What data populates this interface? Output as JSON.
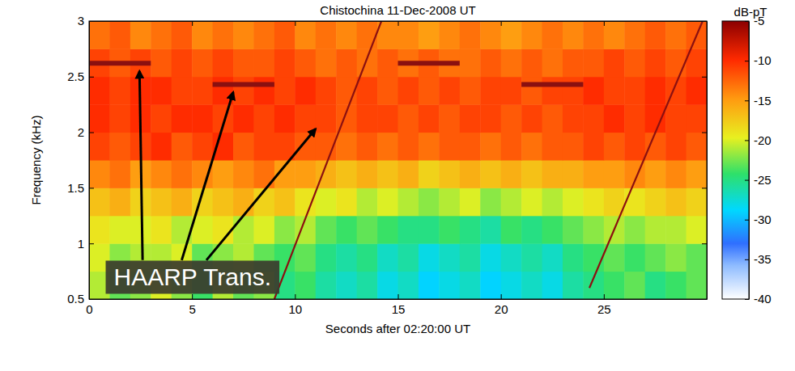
{
  "chart_data": {
    "type": "heatmap",
    "title": "Chistochina 11-Dec-2008 UT",
    "x_label": "Seconds after 02:20:00 UT",
    "y_label": "Frequency (kHz)",
    "xlim": [
      0,
      30
    ],
    "xticks": [
      0,
      5,
      10,
      15,
      20,
      25
    ],
    "ylim": [
      0.5,
      3
    ],
    "yticks": [
      0.5,
      1,
      1.5,
      2,
      2.5,
      3
    ],
    "x_bins": [
      0,
      1,
      2,
      3,
      4,
      5,
      6,
      7,
      8,
      9,
      10,
      11,
      12,
      13,
      14,
      15,
      16,
      17,
      18,
      19,
      20,
      21,
      22,
      23,
      24,
      25,
      26,
      27,
      28,
      29,
      30
    ],
    "y_bins": [
      0.5,
      0.75,
      1,
      1.25,
      1.5,
      1.75,
      2,
      2.25,
      2.5,
      2.75,
      3
    ],
    "cells": [
      [
        -21,
        -23,
        -22,
        -20,
        -22,
        -24,
        -21,
        -23,
        -22,
        -25,
        -24,
        -26,
        -27,
        -26,
        -28,
        -27,
        -29,
        -28,
        -27,
        -29,
        -28,
        -27,
        -28,
        -26,
        -25,
        -24,
        -23,
        -25,
        -24,
        -23
      ],
      [
        -20,
        -22,
        -21,
        -21,
        -20,
        -23,
        -22,
        -21,
        -23,
        -24,
        -23,
        -25,
        -26,
        -25,
        -27,
        -26,
        -28,
        -27,
        -26,
        -28,
        -27,
        -26,
        -27,
        -25,
        -24,
        -23,
        -24,
        -23,
        -22,
        -23
      ],
      [
        -19,
        -20,
        -20,
        -19,
        -21,
        -20,
        -19,
        -21,
        -20,
        -22,
        -21,
        -23,
        -24,
        -23,
        -24,
        -25,
        -25,
        -24,
        -25,
        -26,
        -24,
        -25,
        -24,
        -23,
        -22,
        -21,
        -22,
        -21,
        -21,
        -20
      ],
      [
        -17,
        -16,
        -18,
        -17,
        -16,
        -18,
        -17,
        -16,
        -18,
        -17,
        -19,
        -20,
        -19,
        -21,
        -20,
        -21,
        -22,
        -21,
        -20,
        -22,
        -21,
        -20,
        -21,
        -20,
        -19,
        -18,
        -19,
        -18,
        -17,
        -18
      ],
      [
        -14,
        -13,
        -15,
        -14,
        -13,
        -14,
        -15,
        -14,
        -13,
        -15,
        -15,
        -16,
        -17,
        -16,
        -17,
        -16,
        -18,
        -17,
        -16,
        -17,
        -16,
        -17,
        -16,
        -16,
        -15,
        -15,
        -14,
        -15,
        -14,
        -15
      ],
      [
        -11,
        -12,
        -11,
        -10,
        -12,
        -11,
        -10,
        -12,
        -11,
        -11,
        -12,
        -12,
        -13,
        -12,
        -13,
        -12,
        -13,
        -12,
        -12,
        -13,
        -12,
        -13,
        -12,
        -12,
        -11,
        -12,
        -11,
        -12,
        -11,
        -12
      ],
      [
        -10,
        -11,
        -10,
        -11,
        -10,
        -10,
        -11,
        -10,
        -11,
        -10,
        -11,
        -11,
        -12,
        -11,
        -11,
        -12,
        -11,
        -12,
        -11,
        -11,
        -12,
        -11,
        -12,
        -11,
        -11,
        -10,
        -11,
        -10,
        -11,
        -11
      ],
      [
        -10,
        -11,
        -10,
        -10,
        -11,
        -11,
        -10,
        -11,
        -10,
        -11,
        -10,
        -11,
        -12,
        -11,
        -12,
        -11,
        -12,
        -11,
        -12,
        -11,
        -11,
        -12,
        -11,
        -11,
        -10,
        -11,
        -11,
        -10,
        -11,
        -10
      ],
      [
        -11,
        -12,
        -11,
        -12,
        -11,
        -12,
        -11,
        -12,
        -12,
        -11,
        -12,
        -13,
        -12,
        -13,
        -12,
        -13,
        -12,
        -13,
        -13,
        -12,
        -13,
        -12,
        -13,
        -12,
        -12,
        -11,
        -12,
        -11,
        -12,
        -11
      ],
      [
        -13,
        -12,
        -14,
        -13,
        -12,
        -14,
        -13,
        -14,
        -13,
        -12,
        -14,
        -13,
        -14,
        -13,
        -14,
        -14,
        -15,
        -14,
        -13,
        -14,
        -15,
        -14,
        -13,
        -14,
        -13,
        -14,
        -13,
        -12,
        -13,
        -12
      ]
    ],
    "colorbar_label": "dB-pT",
    "color_range": [
      -40,
      -5
    ],
    "color_ticks": [
      -5,
      -10,
      -15,
      -20,
      -25,
      -30,
      -35,
      -40
    ],
    "transmissions": [
      {
        "x": [
          0,
          3
        ],
        "y": [
          2.62,
          2.62
        ]
      },
      {
        "x": [
          6,
          9
        ],
        "y": [
          2.43,
          2.43
        ]
      },
      {
        "x": [
          9,
          14.2
        ],
        "y": [
          0.5,
          3
        ]
      },
      {
        "x": [
          15,
          18
        ],
        "y": [
          2.62,
          2.62
        ]
      },
      {
        "x": [
          21,
          24
        ],
        "y": [
          2.43,
          2.43
        ]
      },
      {
        "x": [
          24.3,
          29.8
        ],
        "y": [
          0.6,
          3
        ]
      }
    ],
    "annotations": [
      {
        "text": "HAARP Trans.",
        "x": 1.2,
        "y": 0.62,
        "arrows": [
          {
            "from": [
              2.6,
              0.85
            ],
            "to": [
              2.45,
              2.55
            ]
          },
          {
            "from": [
              4.5,
              0.85
            ],
            "to": [
              7,
              2.36
            ]
          },
          {
            "from": [
              5.7,
              0.85
            ],
            "to": [
              11,
              2.03
            ]
          }
        ]
      }
    ]
  }
}
